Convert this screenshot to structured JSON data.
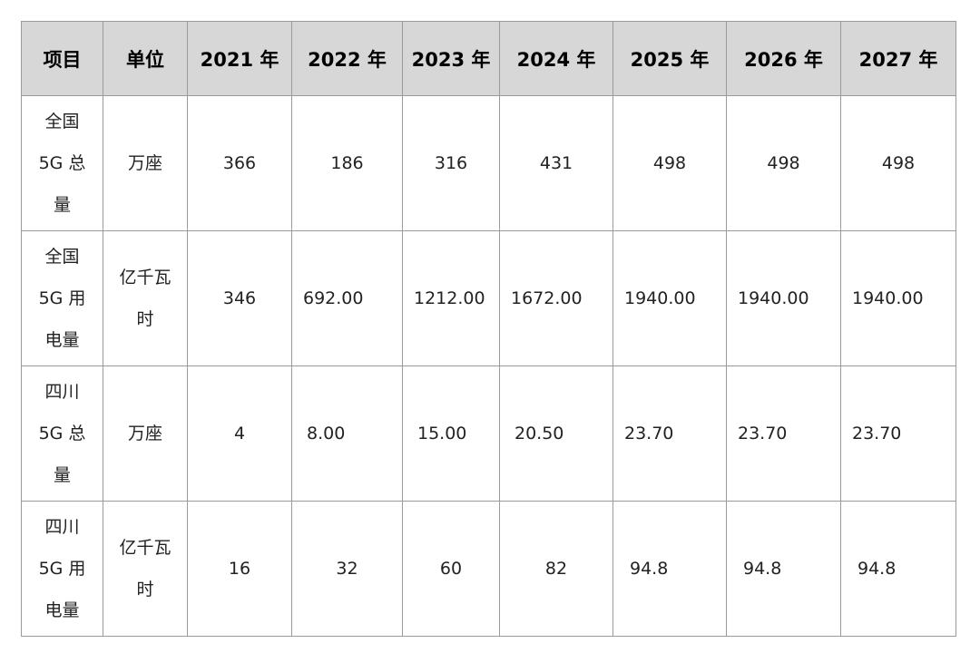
{
  "headers": [
    "项目",
    "单位",
    "2021 年",
    "2022 年",
    "2023 年",
    "2024 年",
    "2025 年",
    "2026 年",
    "2027 年"
  ],
  "rows": [
    {
      "item_lines": [
        "全国",
        "5G 总",
        "量"
      ],
      "unit_lines": [
        "万座"
      ],
      "values": [
        "366",
        "186",
        "316",
        "431",
        "498",
        "498",
        "498"
      ]
    },
    {
      "item_lines": [
        "全国",
        "5G 用",
        "电量"
      ],
      "unit_lines": [
        "亿千瓦",
        "时"
      ],
      "values": [
        "346",
        "692.00",
        "1212.00",
        "1672.00",
        "1940.00",
        "1940.00",
        "1940.00"
      ]
    },
    {
      "item_lines": [
        "四川",
        "5G 总",
        "量"
      ],
      "unit_lines": [
        "万座"
      ],
      "values": [
        "4",
        "8.00",
        "15.00",
        "20.50",
        "23.70",
        "23.70",
        "23.70"
      ]
    },
    {
      "item_lines": [
        "四川",
        "5G 用",
        "电量"
      ],
      "unit_lines": [
        "亿千瓦",
        "时"
      ],
      "values": [
        "16",
        "32",
        "60",
        "82",
        "94.8",
        "94.8",
        "94.8"
      ]
    }
  ]
}
